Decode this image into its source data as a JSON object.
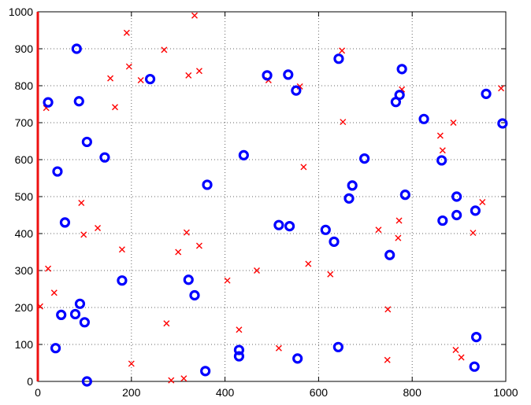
{
  "chart_data": {
    "type": "scatter",
    "title": "",
    "xlabel": "",
    "ylabel": "",
    "xlim": [
      0,
      1000
    ],
    "ylim": [
      0,
      1000
    ],
    "xticks": [
      "0",
      "200",
      "400",
      "600",
      "800",
      "1000"
    ],
    "yticks": [
      "0",
      "100",
      "200",
      "300",
      "400",
      "500",
      "600",
      "700",
      "800",
      "900",
      "1000"
    ],
    "grid": true,
    "legend": "none",
    "colors": {
      "circles": "#0000ff",
      "crosses": "#ff0000",
      "left_axis": "#ee1111"
    },
    "series": [
      {
        "marker": "circle",
        "points": [
          [
            22,
            755
          ],
          [
            83,
            900
          ],
          [
            88,
            758
          ],
          [
            105,
            648
          ],
          [
            143,
            606
          ],
          [
            240,
            818
          ],
          [
            42,
            568
          ],
          [
            58,
            430
          ],
          [
            180,
            273
          ],
          [
            90,
            210
          ],
          [
            80,
            182
          ],
          [
            50,
            180
          ],
          [
            100,
            160
          ],
          [
            38,
            90
          ],
          [
            105,
            0
          ],
          [
            322,
            275
          ],
          [
            335,
            233
          ],
          [
            362,
            532
          ],
          [
            358,
            28
          ],
          [
            440,
            612
          ],
          [
            430,
            85
          ],
          [
            430,
            68
          ],
          [
            490,
            828
          ],
          [
            535,
            830
          ],
          [
            552,
            787
          ],
          [
            515,
            423
          ],
          [
            538,
            420
          ],
          [
            555,
            62
          ],
          [
            643,
            873
          ],
          [
            615,
            410
          ],
          [
            633,
            378
          ],
          [
            665,
            495
          ],
          [
            672,
            530
          ],
          [
            698,
            603
          ],
          [
            642,
            93
          ],
          [
            752,
            342
          ],
          [
            765,
            756
          ],
          [
            773,
            775
          ],
          [
            778,
            845
          ],
          [
            785,
            505
          ],
          [
            825,
            710
          ],
          [
            863,
            598
          ],
          [
            865,
            435
          ],
          [
            895,
            500
          ],
          [
            895,
            450
          ],
          [
            935,
            462
          ],
          [
            937,
            120
          ],
          [
            933,
            40
          ],
          [
            958,
            778
          ],
          [
            993,
            698
          ]
        ]
      },
      {
        "marker": "cross",
        "points": [
          [
            335,
            990
          ],
          [
            190,
            943
          ],
          [
            270,
            897
          ],
          [
            195,
            852
          ],
          [
            155,
            820
          ],
          [
            220,
            815
          ],
          [
            322,
            828
          ],
          [
            345,
            840
          ],
          [
            165,
            742
          ],
          [
            18,
            740
          ],
          [
            93,
            483
          ],
          [
            128,
            415
          ],
          [
            98,
            397
          ],
          [
            180,
            357
          ],
          [
            300,
            350
          ],
          [
            318,
            403
          ],
          [
            345,
            367
          ],
          [
            22,
            305
          ],
          [
            35,
            240
          ],
          [
            275,
            157
          ],
          [
            200,
            48
          ],
          [
            285,
            3
          ],
          [
            312,
            8
          ],
          [
            405,
            273
          ],
          [
            468,
            300
          ],
          [
            430,
            140
          ],
          [
            515,
            90
          ],
          [
            493,
            815
          ],
          [
            560,
            798
          ],
          [
            650,
            895
          ],
          [
            652,
            702
          ],
          [
            568,
            580
          ],
          [
            578,
            318
          ],
          [
            625,
            290
          ],
          [
            728,
            410
          ],
          [
            748,
            195
          ],
          [
            747,
            58
          ],
          [
            778,
            790
          ],
          [
            772,
            435
          ],
          [
            770,
            388
          ],
          [
            860,
            665
          ],
          [
            865,
            625
          ],
          [
            888,
            700
          ],
          [
            930,
            402
          ],
          [
            950,
            485
          ],
          [
            990,
            793
          ],
          [
            893,
            85
          ],
          [
            905,
            65
          ],
          [
            5,
            203
          ]
        ]
      }
    ]
  }
}
